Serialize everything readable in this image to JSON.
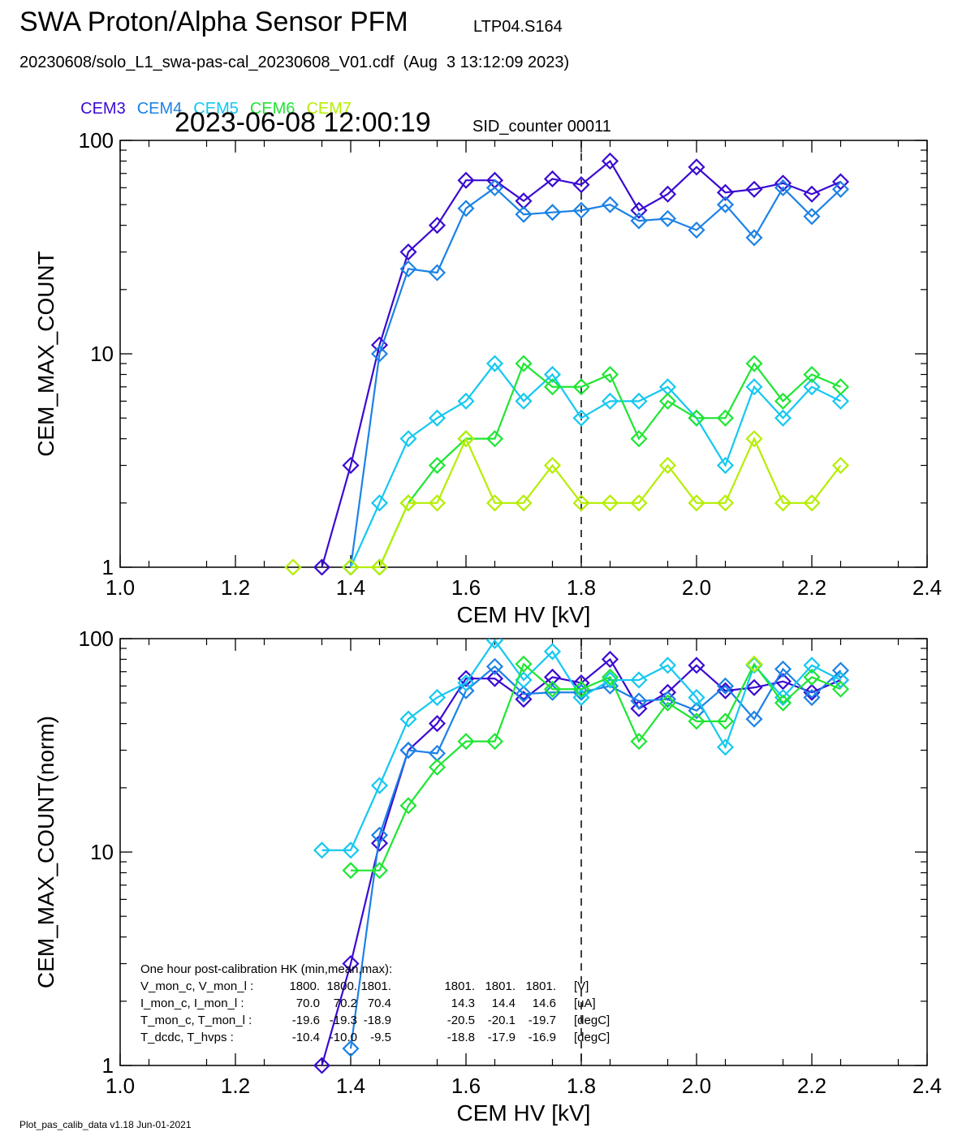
{
  "header": {
    "title": "SWA Proton/Alpha Sensor PFM",
    "run_id": "LTP04.S164",
    "file_line": "20230608/solo_L1_swa-pas-cal_20230608_V01.cdf  (Aug  3 13:12:09 2023)",
    "timestamp": "2023-06-08 12:00:19",
    "sid_counter": "SID_counter 00011"
  },
  "footer": "Plot_pas_calib_data v1.18 Jun-01-2021",
  "colors": {
    "CEM3": "#3a0ad2",
    "CEM4": "#1c82e6",
    "CEM5": "#14c8f0",
    "CEM6": "#1ee632",
    "CEM7": "#b4ee00"
  },
  "chart_data": [
    {
      "type": "line",
      "xlabel": "CEM HV [kV]",
      "ylabel": "CEM_MAX_COUNT",
      "xlim": [
        1.0,
        2.4
      ],
      "ylim": [
        1,
        100
      ],
      "yscale": "log",
      "xticks": [
        "1.0",
        "1.2",
        "1.4",
        "1.6",
        "1.8",
        "2.0",
        "2.2",
        "2.4"
      ],
      "yticks": [
        "1",
        "10",
        "100"
      ],
      "vline": 1.8,
      "x": [
        1.3,
        1.35,
        1.4,
        1.45,
        1.5,
        1.55,
        1.6,
        1.65,
        1.7,
        1.75,
        1.8,
        1.85,
        1.9,
        1.95,
        2.0,
        2.05,
        2.1,
        2.15,
        2.2,
        2.25
      ],
      "series": [
        {
          "name": "CEM3",
          "values": [
            null,
            1,
            3,
            11,
            30,
            40,
            65,
            65,
            52,
            66,
            62,
            80,
            47,
            56,
            75,
            57,
            59,
            63,
            56,
            64
          ]
        },
        {
          "name": "CEM4",
          "values": [
            null,
            null,
            1,
            10,
            25,
            24,
            48,
            60,
            45,
            46,
            47,
            50,
            42,
            43,
            38,
            50,
            35,
            60,
            44,
            59
          ]
        },
        {
          "name": "CEM5",
          "values": [
            null,
            null,
            1,
            2,
            4,
            5,
            6,
            9,
            6,
            8,
            5,
            6,
            6,
            7,
            5,
            3,
            7,
            5,
            7,
            6
          ]
        },
        {
          "name": "CEM6",
          "values": [
            null,
            null,
            null,
            1,
            2,
            3,
            4,
            4,
            9,
            7,
            7,
            8,
            4,
            6,
            5,
            5,
            9,
            6,
            8,
            7
          ]
        },
        {
          "name": "CEM7",
          "values": [
            1,
            null,
            1,
            1,
            2,
            2,
            4,
            2,
            2,
            3,
            2,
            2,
            2,
            3,
            2,
            2,
            4,
            2,
            2,
            3
          ]
        }
      ]
    },
    {
      "type": "line",
      "xlabel": "CEM HV [kV]",
      "ylabel": "CEM_MAX_COUNT(norm)",
      "xlim": [
        1.0,
        2.4
      ],
      "ylim": [
        1,
        100
      ],
      "yscale": "log",
      "xticks": [
        "1.0",
        "1.2",
        "1.4",
        "1.6",
        "1.8",
        "2.0",
        "2.2",
        "2.4"
      ],
      "yticks": [
        "1",
        "10",
        "100"
      ],
      "vline": 1.8,
      "x": [
        1.3,
        1.35,
        1.4,
        1.45,
        1.5,
        1.55,
        1.6,
        1.65,
        1.7,
        1.75,
        1.8,
        1.85,
        1.9,
        1.95,
        2.0,
        2.05,
        2.1,
        2.15,
        2.2,
        2.25
      ],
      "series": [
        {
          "name": "CEM3",
          "values": [
            null,
            1.0,
            3.0,
            11,
            30,
            40,
            65,
            65,
            52,
            66,
            62,
            80,
            47,
            56,
            75,
            57,
            59,
            63,
            56,
            64
          ]
        },
        {
          "name": "CEM4",
          "values": [
            null,
            null,
            1.2,
            12,
            30,
            29,
            57,
            74,
            55,
            56,
            56,
            60,
            51,
            52,
            46,
            60,
            42,
            72,
            53,
            71
          ]
        },
        {
          "name": "CEM5",
          "values": [
            null,
            10.2,
            10.2,
            20.5,
            42,
            53,
            62,
            98,
            64,
            87,
            53,
            64,
            64,
            75,
            53,
            31,
            75,
            53,
            75,
            64
          ]
        },
        {
          "name": "CEM6",
          "values": [
            null,
            null,
            8.2,
            8.2,
            16.5,
            25,
            33,
            33,
            76,
            58,
            58,
            66,
            33,
            50,
            41,
            41,
            76,
            50,
            66,
            58
          ]
        },
        {
          "name": "CEM7",
          "values": [
            null,
            null,
            null,
            null,
            null,
            null,
            null,
            null,
            null,
            null,
            null,
            null,
            null,
            null,
            null,
            null,
            76,
            null,
            null,
            null
          ]
        }
      ],
      "annotation": {
        "header": "One hour post-calibration HK (min,mean,max):",
        "rows": [
          {
            "label": "V_mon_c, V_mon_l :",
            "c": [
              "1800.",
              "1800.",
              "1801."
            ],
            "l": [
              "1801.",
              "1801.",
              "1801."
            ],
            "unit": "[V]"
          },
          {
            "label": "I_mon_c,  I_mon_l :",
            "c": [
              "70.0",
              "70.2",
              "70.4"
            ],
            "l": [
              "14.3",
              "14.4",
              "14.6"
            ],
            "unit": "[uA]"
          },
          {
            "label": "T_mon_c, T_mon_l :",
            "c": [
              "-19.6",
              "-19.3",
              "-18.9"
            ],
            "l": [
              "-20.5",
              "-20.1",
              "-19.7"
            ],
            "unit": "[degC]"
          },
          {
            "label": "T_dcdc,    T_hvps :",
            "c": [
              "-10.4",
              "-10.0",
              "-9.5"
            ],
            "l": [
              "-18.8",
              "-17.9",
              "-16.9"
            ],
            "unit": "[degC]"
          }
        ]
      }
    }
  ]
}
